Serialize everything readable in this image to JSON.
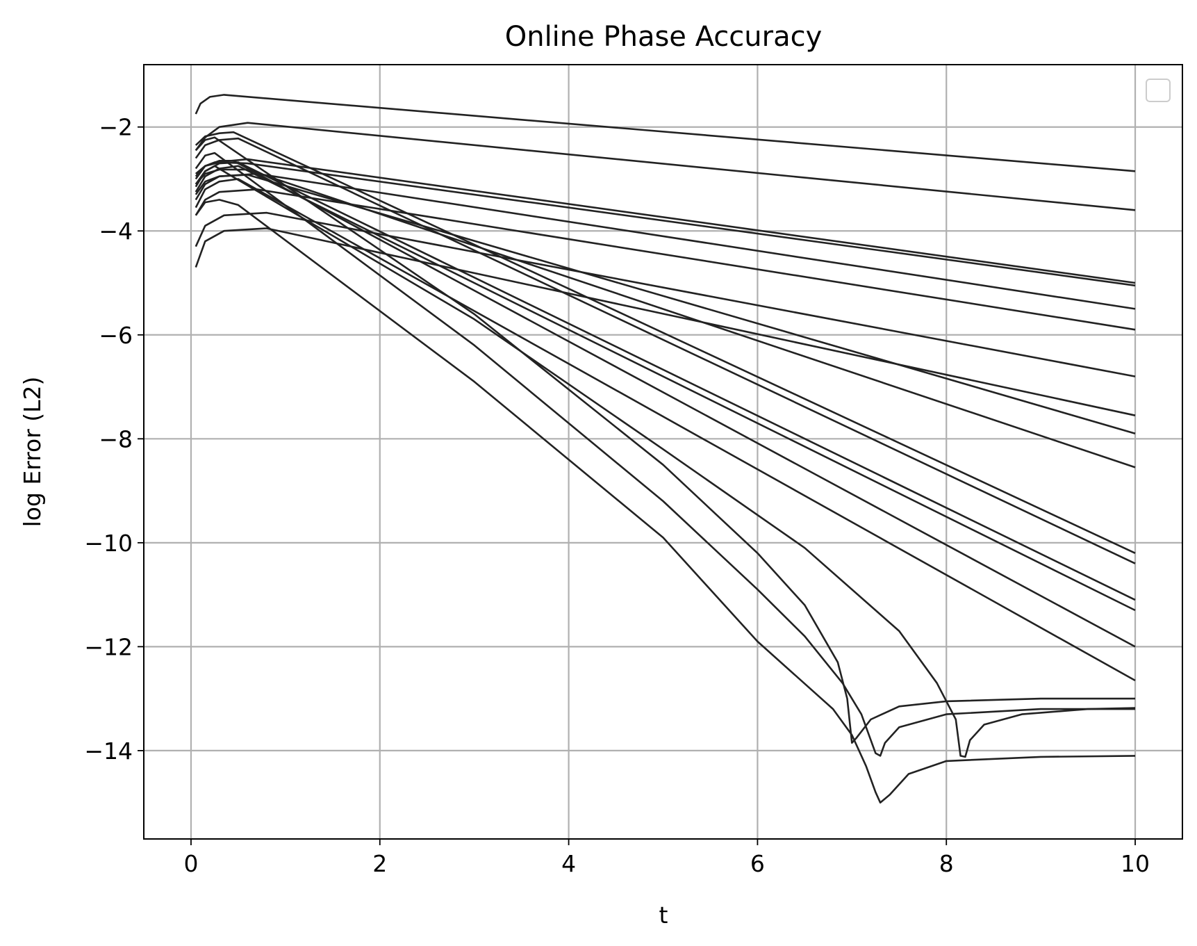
{
  "chart_data": {
    "type": "line",
    "title": "Online Phase Accuracy",
    "xlabel": "t",
    "ylabel": "log Error (L2)",
    "xlim": [
      -0.5,
      10.5
    ],
    "ylim": [
      -15.7,
      -0.8
    ],
    "xticks": [
      0,
      2,
      4,
      6,
      8,
      10
    ],
    "yticks": [
      -14,
      -12,
      -10,
      -8,
      -6,
      -4,
      -2
    ],
    "xtick_labels": [
      "0",
      "2",
      "4",
      "6",
      "8",
      "10"
    ],
    "ytick_labels": [
      "−14",
      "−12",
      "−10",
      "−8",
      "−6",
      "−4",
      "−2"
    ],
    "grid": true,
    "legend": {
      "position": "top-right",
      "entries": []
    },
    "line_color": "#222222",
    "series": [
      {
        "x": [
          0.05,
          0.1,
          0.2,
          0.35,
          10
        ],
        "y": [
          -1.75,
          -1.55,
          -1.42,
          -1.38,
          -2.85
        ]
      },
      {
        "x": [
          0.05,
          0.15,
          0.3,
          0.6,
          10
        ],
        "y": [
          -2.45,
          -2.2,
          -2.0,
          -1.92,
          -3.6
        ]
      },
      {
        "x": [
          0.05,
          0.15,
          0.25,
          0.6,
          10
        ],
        "y": [
          -2.95,
          -2.75,
          -2.68,
          -2.62,
          -5.0
        ]
      },
      {
        "x": [
          0.05,
          0.15,
          0.3,
          0.6,
          10
        ],
        "y": [
          -2.9,
          -2.75,
          -2.68,
          -2.7,
          -5.05
        ]
      },
      {
        "x": [
          0.05,
          0.15,
          0.3,
          0.7,
          10
        ],
        "y": [
          -3.4,
          -3.1,
          -2.95,
          -2.9,
          -5.5
        ]
      },
      {
        "x": [
          0.05,
          0.15,
          0.3,
          0.7,
          10
        ],
        "y": [
          -3.7,
          -3.4,
          -3.25,
          -3.2,
          -5.9
        ]
      },
      {
        "x": [
          0.05,
          0.15,
          0.35,
          0.8,
          10
        ],
        "y": [
          -4.3,
          -3.9,
          -3.7,
          -3.65,
          -6.8
        ]
      },
      {
        "x": [
          0.05,
          0.15,
          0.35,
          0.8,
          10
        ],
        "y": [
          -4.7,
          -4.2,
          -4.0,
          -3.95,
          -7.55
        ]
      },
      {
        "x": [
          0.05,
          0.15,
          0.3,
          0.6,
          10
        ],
        "y": [
          -3.3,
          -3.05,
          -2.95,
          -2.92,
          -7.9
        ]
      },
      {
        "x": [
          0.05,
          0.15,
          0.3,
          0.6,
          10
        ],
        "y": [
          -3.1,
          -2.9,
          -2.82,
          -2.82,
          -8.55
        ]
      },
      {
        "x": [
          0.05,
          0.15,
          0.3,
          0.45,
          10
        ],
        "y": [
          -2.35,
          -2.18,
          -2.12,
          -2.1,
          -10.2
        ]
      },
      {
        "x": [
          0.05,
          0.15,
          0.3,
          0.5,
          10
        ],
        "y": [
          -2.6,
          -2.35,
          -2.25,
          -2.22,
          -10.4
        ]
      },
      {
        "x": [
          0.05,
          0.15,
          0.3,
          0.5,
          10
        ],
        "y": [
          -3.15,
          -2.85,
          -2.7,
          -2.68,
          -11.1
        ]
      },
      {
        "x": [
          0.05,
          0.15,
          0.3,
          0.5,
          10
        ],
        "y": [
          -3.25,
          -2.95,
          -2.8,
          -2.75,
          -11.3
        ]
      },
      {
        "x": [
          0.05,
          0.15,
          0.3,
          0.45,
          10
        ],
        "y": [
          -3.0,
          -2.75,
          -2.65,
          -2.65,
          -12.0
        ]
      },
      {
        "x": [
          0.05,
          0.15,
          0.3,
          0.5,
          10
        ],
        "y": [
          -3.55,
          -3.2,
          -3.05,
          -3.0,
          -12.65
        ]
      },
      {
        "x": [
          0.05,
          0.15,
          0.25,
          3.0,
          5.0,
          6.0,
          6.5,
          6.85,
          6.95,
          7.0,
          7.05,
          7.2,
          7.5,
          8.0,
          9.0,
          10.0
        ],
        "y": [
          -2.45,
          -2.25,
          -2.2,
          -5.6,
          -8.5,
          -10.2,
          -11.2,
          -12.3,
          -13.0,
          -13.85,
          -13.75,
          -13.4,
          -13.15,
          -13.05,
          -13.0,
          -13.0
        ]
      },
      {
        "x": [
          0.05,
          0.15,
          0.25,
          3.0,
          5.0,
          6.0,
          6.5,
          6.9,
          7.1,
          7.25,
          7.3,
          7.35,
          7.5,
          8.0,
          9.0,
          10.0
        ],
        "y": [
          -2.8,
          -2.55,
          -2.5,
          -6.2,
          -9.2,
          -10.9,
          -11.8,
          -12.7,
          -13.3,
          -14.05,
          -14.1,
          -13.85,
          -13.55,
          -13.3,
          -13.2,
          -13.2
        ]
      },
      {
        "x": [
          0.05,
          0.15,
          0.25,
          3.0,
          5.0,
          6.5,
          7.5,
          7.9,
          8.1,
          8.15,
          8.2,
          8.25,
          8.4,
          8.8,
          9.5,
          10.0
        ],
        "y": [
          -3.1,
          -2.85,
          -2.75,
          -5.7,
          -8.2,
          -10.1,
          -11.7,
          -12.7,
          -13.4,
          -14.1,
          -14.12,
          -13.8,
          -13.5,
          -13.3,
          -13.2,
          -13.18
        ]
      },
      {
        "x": [
          0.05,
          0.15,
          0.3,
          0.5,
          3.0,
          5.0,
          6.0,
          6.8,
          7.0,
          7.15,
          7.25,
          7.3,
          7.4,
          7.6,
          8.0,
          9.0,
          10.0
        ],
        "y": [
          -3.7,
          -3.45,
          -3.4,
          -3.5,
          -6.9,
          -9.9,
          -11.9,
          -13.2,
          -13.7,
          -14.3,
          -14.8,
          -15.0,
          -14.85,
          -14.45,
          -14.2,
          -14.12,
          -14.1
        ]
      }
    ]
  }
}
